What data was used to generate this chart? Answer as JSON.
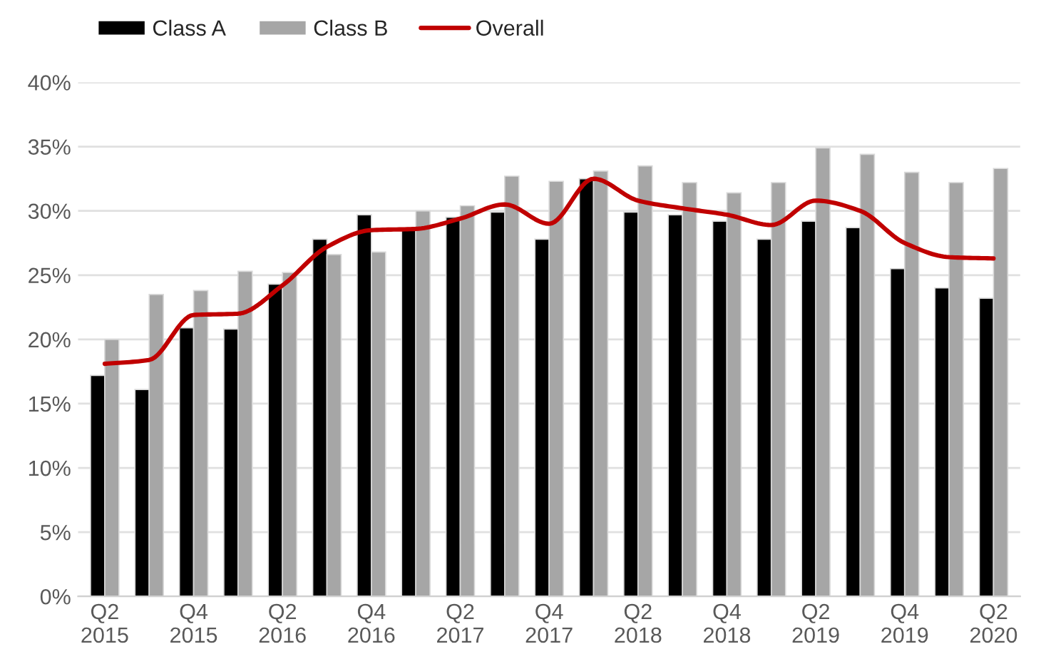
{
  "chart_data": {
    "type": "bar",
    "categories": [
      "Q2\n2015",
      null,
      "Q4\n2015",
      null,
      "Q2\n2016",
      null,
      "Q4\n2016",
      null,
      "Q2\n2017",
      null,
      "Q4\n2017",
      null,
      "Q2\n2018",
      null,
      "Q4\n2018",
      null,
      "Q2\n2019",
      null,
      "Q4\n2019",
      null,
      "Q2\n2020"
    ],
    "series": [
      {
        "name": "Class A",
        "color": "#000000",
        "values": [
          17.2,
          16.1,
          20.9,
          20.8,
          24.3,
          27.8,
          29.7,
          28.5,
          29.5,
          29.9,
          27.8,
          32.5,
          29.9,
          29.7,
          29.2,
          27.8,
          29.2,
          28.7,
          25.5,
          24.0,
          23.2
        ]
      },
      {
        "name": "Class B",
        "color": "#a6a6a6",
        "values": [
          20.0,
          23.5,
          23.8,
          25.3,
          25.2,
          26.6,
          26.8,
          30.0,
          30.4,
          32.7,
          32.3,
          33.1,
          33.5,
          32.2,
          31.4,
          32.2,
          34.9,
          34.4,
          33.0,
          32.2,
          33.3
        ]
      },
      {
        "name": "Overall",
        "type": "line",
        "color": "#c00000",
        "values": [
          18.1,
          18.4,
          21.9,
          22.0,
          24.2,
          27.2,
          28.5,
          28.6,
          29.4,
          30.5,
          29.0,
          32.5,
          30.8,
          30.2,
          29.7,
          28.9,
          30.8,
          30.0,
          27.5,
          26.4,
          26.3
        ]
      }
    ],
    "ylim": [
      0,
      40
    ],
    "yticks": [
      {
        "value": 0,
        "label": "0%"
      },
      {
        "value": 5,
        "label": "5%"
      },
      {
        "value": 10,
        "label": "10%"
      },
      {
        "value": 15,
        "label": "15%"
      },
      {
        "value": 20,
        "label": "20%"
      },
      {
        "value": 25,
        "label": "25%"
      },
      {
        "value": 30,
        "label": "30%"
      },
      {
        "value": 35,
        "label": "35%"
      },
      {
        "value": 40,
        "label": "40%"
      }
    ],
    "grid": "y",
    "legend": "top left",
    "line_style": "solid"
  }
}
